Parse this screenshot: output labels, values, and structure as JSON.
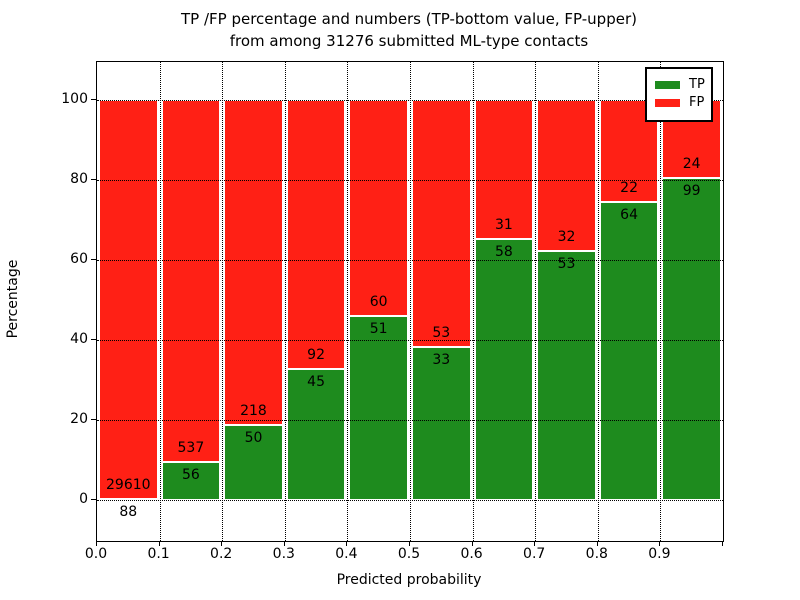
{
  "title": {
    "line1": "TP /FP percentage and numbers (TP-bottom value, FP-upper)",
    "line2": "from among 31276 submitted ML-type contacts"
  },
  "axes": {
    "xlabel": "Predicted probability",
    "ylabel": "Percentage",
    "x_tick_labels": [
      "0.0",
      "0.1",
      "0.2",
      "0.3",
      "0.4",
      "0.5",
      "0.6",
      "0.7",
      "0.8",
      "0.9"
    ],
    "y_tick_labels": [
      "0",
      "20",
      "40",
      "60",
      "80",
      "100"
    ],
    "y_tick_values": [
      0,
      20,
      40,
      60,
      80,
      100
    ],
    "grid": "dotted"
  },
  "legend": {
    "position": "upper right",
    "items": [
      {
        "label": "TP",
        "color": "#1e8b1e"
      },
      {
        "label": "FP",
        "color": "#ff2015"
      }
    ]
  },
  "colors": {
    "tp": "#1e8b1e",
    "fp": "#ff2015",
    "bar_edge": "#ffffff",
    "grid": "#000000",
    "text": "#000000",
    "background": "#ffffff"
  },
  "chart_data": {
    "type": "bar",
    "stacked": true,
    "normalized_to_percent": true,
    "title": "TP /FP percentage and numbers (TP-bottom value, FP-upper) from among 31276 submitted ML-type contacts",
    "xlabel": "Predicted probability",
    "ylabel": "Percentage",
    "xlim": [
      0.0,
      1.0
    ],
    "ylim": [
      -10,
      110
    ],
    "bin_width": 0.1,
    "categories": [
      "0.0-0.1",
      "0.1-0.2",
      "0.2-0.3",
      "0.3-0.4",
      "0.4-0.5",
      "0.5-0.6",
      "0.6-0.7",
      "0.7-0.8",
      "0.8-0.9",
      "0.9-1.0"
    ],
    "series": [
      {
        "name": "TP",
        "counts": [
          88,
          56,
          50,
          45,
          51,
          33,
          58,
          53,
          64,
          99
        ]
      },
      {
        "name": "FP",
        "counts": [
          29610,
          537,
          218,
          92,
          60,
          53,
          31,
          32,
          22,
          24
        ]
      }
    ],
    "tp_percent": [
      0.3,
      9.4,
      18.7,
      32.8,
      45.9,
      38.4,
      65.2,
      62.4,
      74.4,
      80.5
    ],
    "total_contacts": 31276,
    "legend_position": "upper right"
  }
}
